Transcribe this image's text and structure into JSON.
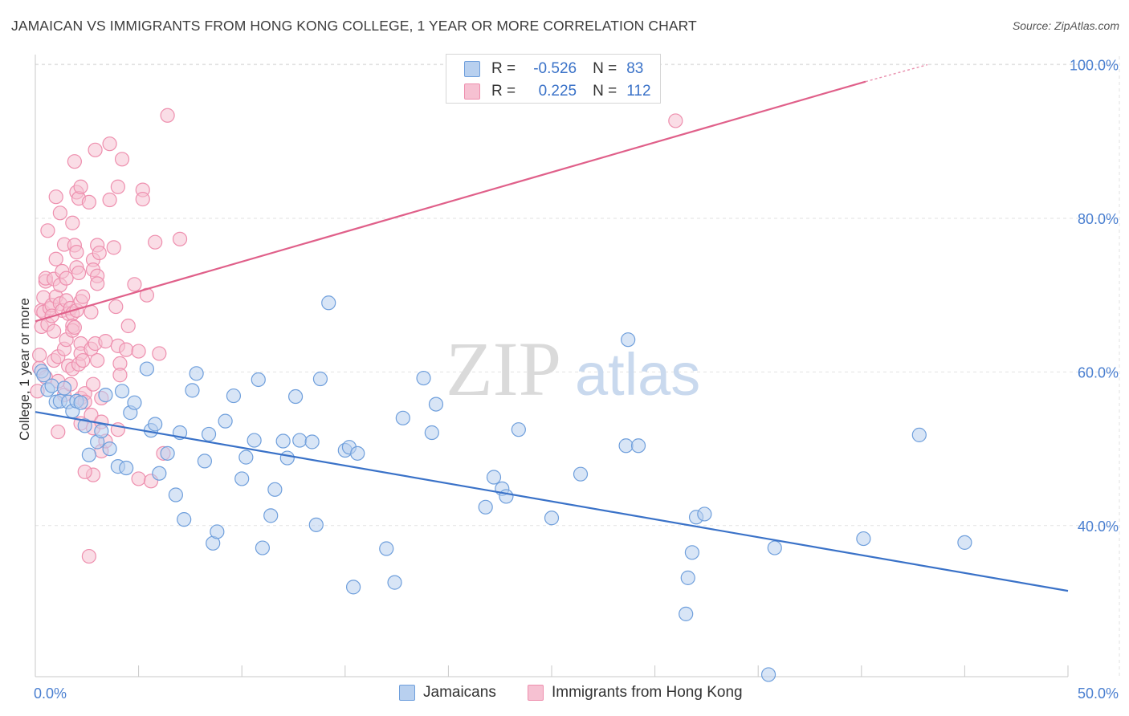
{
  "header": {
    "title": "JAMAICAN VS IMMIGRANTS FROM HONG KONG COLLEGE, 1 YEAR OR MORE CORRELATION CHART",
    "source": "Source: ZipAtlas.com"
  },
  "colors": {
    "blue": "#3a72c8",
    "blue_fill": "#b8d0ef",
    "blue_stroke": "#6f9fdc",
    "pink": "#e0608a",
    "pink_fill": "#f6c1d2",
    "pink_stroke": "#ee8fae",
    "grid": "#e2e2e2",
    "tick_text": "#4a7fd0"
  },
  "legend": {
    "rows": [
      {
        "r_label": "R =",
        "r_value": "-0.526",
        "n_label": "N =",
        "n_value": "83"
      },
      {
        "r_label": "R =",
        "r_value": "0.225",
        "n_label": "N =",
        "n_value": "112"
      }
    ]
  },
  "bottom_legend": {
    "items": [
      "Jamaicans",
      "Immigrants from Hong Kong"
    ]
  },
  "watermark": {
    "zip": "ZIP",
    "atlas": "atlas"
  },
  "chart_data": {
    "type": "scatter",
    "title": "JAMAICAN VS IMMIGRANTS FROM HONG KONG COLLEGE, 1 YEAR OR MORE CORRELATION CHART",
    "xlabel": "",
    "ylabel": "College, 1 year or more",
    "xlim": [
      0,
      50
    ],
    "ylim": [
      20.5,
      102
    ],
    "x_tick_labels": [
      {
        "value": 0,
        "label": "0.0%"
      },
      {
        "value": 50,
        "label": "50.0%"
      }
    ],
    "x_minor_ticks": [
      0,
      5,
      10,
      15,
      20,
      25,
      30,
      35,
      40,
      45,
      50
    ],
    "y_ticks": [
      {
        "value": 40,
        "label": "40.0%"
      },
      {
        "value": 60,
        "label": "60.0%"
      },
      {
        "value": 80,
        "label": "80.0%"
      },
      {
        "value": 100,
        "label": "100.0%"
      }
    ],
    "grid": true,
    "legend_position": "top-center",
    "series": [
      {
        "name": "Jamaicans",
        "R": -0.526,
        "N": 83,
        "trend": {
          "x": [
            0,
            50
          ],
          "y": [
            54.8,
            31.5
          ]
        },
        "points": [
          [
            0.3,
            60.1
          ],
          [
            0.4,
            59.6
          ],
          [
            0.6,
            57.7
          ],
          [
            0.8,
            58.2
          ],
          [
            1.0,
            56.1
          ],
          [
            1.2,
            56.2
          ],
          [
            1.4,
            57.9
          ],
          [
            1.6,
            56.1
          ],
          [
            1.8,
            54.9
          ],
          [
            2.0,
            56.2
          ],
          [
            2.2,
            56.0
          ],
          [
            2.4,
            53.0
          ],
          [
            2.6,
            49.2
          ],
          [
            3.0,
            50.9
          ],
          [
            3.2,
            52.3
          ],
          [
            3.4,
            57.0
          ],
          [
            3.6,
            50.0
          ],
          [
            4.0,
            47.7
          ],
          [
            4.2,
            57.5
          ],
          [
            4.4,
            47.5
          ],
          [
            4.6,
            54.7
          ],
          [
            4.8,
            56.0
          ],
          [
            5.4,
            60.4
          ],
          [
            5.6,
            52.4
          ],
          [
            5.8,
            53.2
          ],
          [
            6.0,
            46.8
          ],
          [
            6.4,
            49.4
          ],
          [
            6.8,
            44.0
          ],
          [
            7.0,
            52.1
          ],
          [
            7.2,
            40.8
          ],
          [
            7.6,
            57.6
          ],
          [
            7.8,
            59.8
          ],
          [
            8.2,
            48.4
          ],
          [
            8.4,
            51.9
          ],
          [
            8.6,
            37.7
          ],
          [
            8.8,
            39.2
          ],
          [
            9.2,
            53.6
          ],
          [
            9.6,
            56.9
          ],
          [
            10.0,
            46.1
          ],
          [
            10.2,
            48.9
          ],
          [
            10.6,
            51.1
          ],
          [
            10.8,
            59.0
          ],
          [
            11.0,
            37.1
          ],
          [
            11.4,
            41.3
          ],
          [
            11.6,
            44.7
          ],
          [
            12.2,
            48.8
          ],
          [
            12.0,
            51.0
          ],
          [
            12.6,
            56.8
          ],
          [
            12.8,
            51.1
          ],
          [
            13.4,
            50.9
          ],
          [
            13.6,
            40.1
          ],
          [
            13.8,
            59.1
          ],
          [
            14.2,
            69.0
          ],
          [
            15.0,
            49.8
          ],
          [
            15.2,
            50.2
          ],
          [
            15.4,
            32.0
          ],
          [
            15.6,
            49.4
          ],
          [
            17.0,
            37.0
          ],
          [
            17.4,
            32.6
          ],
          [
            17.8,
            54.0
          ],
          [
            18.8,
            59.2
          ],
          [
            19.2,
            52.1
          ],
          [
            19.4,
            55.8
          ],
          [
            21.8,
            42.4
          ],
          [
            22.2,
            46.3
          ],
          [
            22.6,
            44.8
          ],
          [
            22.8,
            43.8
          ],
          [
            23.4,
            52.5
          ],
          [
            25.0,
            41.0
          ],
          [
            26.4,
            46.7
          ],
          [
            28.6,
            50.4
          ],
          [
            28.7,
            64.2
          ],
          [
            29.2,
            50.4
          ],
          [
            31.5,
            28.5
          ],
          [
            31.6,
            33.2
          ],
          [
            31.8,
            36.5
          ],
          [
            32.0,
            41.1
          ],
          [
            32.4,
            41.5
          ],
          [
            35.5,
            20.6
          ],
          [
            35.8,
            37.1
          ],
          [
            40.1,
            38.3
          ],
          [
            42.8,
            51.8
          ],
          [
            45.0,
            37.8
          ]
        ]
      },
      {
        "name": "Immigrants from Hong Kong",
        "R": 0.225,
        "N": 112,
        "trend": {
          "x": [
            0,
            40.2
          ],
          "y": [
            66.6,
            97.8
          ]
        },
        "trend_dashed": {
          "x": [
            40.2,
            43.2
          ],
          "y": [
            97.8,
            100.0
          ]
        },
        "points": [
          [
            0.1,
            57.5
          ],
          [
            0.2,
            60.5
          ],
          [
            0.2,
            62.2
          ],
          [
            0.3,
            65.9
          ],
          [
            0.3,
            68.0
          ],
          [
            0.4,
            67.8
          ],
          [
            0.4,
            69.7
          ],
          [
            0.5,
            71.8
          ],
          [
            0.5,
            72.2
          ],
          [
            0.5,
            59.3
          ],
          [
            0.6,
            66.2
          ],
          [
            0.6,
            78.4
          ],
          [
            0.7,
            68.3
          ],
          [
            0.8,
            68.7
          ],
          [
            0.8,
            67.3
          ],
          [
            0.9,
            72.1
          ],
          [
            0.9,
            61.5
          ],
          [
            0.9,
            65.3
          ],
          [
            1.0,
            69.8
          ],
          [
            1.0,
            82.8
          ],
          [
            1.0,
            74.7
          ],
          [
            1.1,
            62.0
          ],
          [
            1.1,
            58.8
          ],
          [
            1.1,
            52.2
          ],
          [
            1.2,
            68.9
          ],
          [
            1.2,
            71.3
          ],
          [
            1.2,
            80.7
          ],
          [
            1.3,
            73.1
          ],
          [
            1.3,
            68.0
          ],
          [
            1.4,
            63.0
          ],
          [
            1.4,
            57.0
          ],
          [
            1.4,
            76.6
          ],
          [
            1.5,
            69.3
          ],
          [
            1.5,
            72.2
          ],
          [
            1.5,
            64.2
          ],
          [
            1.6,
            67.6
          ],
          [
            1.6,
            60.8
          ],
          [
            1.7,
            68.3
          ],
          [
            1.7,
            58.4
          ],
          [
            1.8,
            79.4
          ],
          [
            1.8,
            67.6
          ],
          [
            1.8,
            66.0
          ],
          [
            1.8,
            60.4
          ],
          [
            1.8,
            65.4
          ],
          [
            1.9,
            87.4
          ],
          [
            1.9,
            65.8
          ],
          [
            1.9,
            76.5
          ],
          [
            2.0,
            73.6
          ],
          [
            2.0,
            75.6
          ],
          [
            2.0,
            83.4
          ],
          [
            2.0,
            68.0
          ],
          [
            2.1,
            82.6
          ],
          [
            2.1,
            72.9
          ],
          [
            2.1,
            61.0
          ],
          [
            2.2,
            84.1
          ],
          [
            2.2,
            69.2
          ],
          [
            2.2,
            63.7
          ],
          [
            2.2,
            62.4
          ],
          [
            2.2,
            56.6
          ],
          [
            2.2,
            53.3
          ],
          [
            2.3,
            69.8
          ],
          [
            2.3,
            61.5
          ],
          [
            2.4,
            57.2
          ],
          [
            2.4,
            56.1
          ],
          [
            2.6,
            82.1
          ],
          [
            2.7,
            67.8
          ],
          [
            2.7,
            54.4
          ],
          [
            2.7,
            63.0
          ],
          [
            2.8,
            74.6
          ],
          [
            2.8,
            73.3
          ],
          [
            2.8,
            58.4
          ],
          [
            2.8,
            52.7
          ],
          [
            2.8,
            46.6
          ],
          [
            2.9,
            88.9
          ],
          [
            2.9,
            63.7
          ],
          [
            3.0,
            61.5
          ],
          [
            3.0,
            76.5
          ],
          [
            3.0,
            72.5
          ],
          [
            3.0,
            71.5
          ],
          [
            3.1,
            75.5
          ],
          [
            3.2,
            56.6
          ],
          [
            3.2,
            53.5
          ],
          [
            3.2,
            49.7
          ],
          [
            3.4,
            64.0
          ],
          [
            3.4,
            51.0
          ],
          [
            3.6,
            89.7
          ],
          [
            3.6,
            82.4
          ],
          [
            3.8,
            76.2
          ],
          [
            3.9,
            68.5
          ],
          [
            4.0,
            84.1
          ],
          [
            4.0,
            63.4
          ],
          [
            4.0,
            52.5
          ],
          [
            4.1,
            61.1
          ],
          [
            4.1,
            59.6
          ],
          [
            4.2,
            87.7
          ],
          [
            4.4,
            62.9
          ],
          [
            4.5,
            66.0
          ],
          [
            4.8,
            71.4
          ],
          [
            5.0,
            62.7
          ],
          [
            5.0,
            46.1
          ],
          [
            5.2,
            83.7
          ],
          [
            5.2,
            82.5
          ],
          [
            5.4,
            70.0
          ],
          [
            5.6,
            45.8
          ],
          [
            5.8,
            76.9
          ],
          [
            6.0,
            62.4
          ],
          [
            6.2,
            49.4
          ],
          [
            6.4,
            93.4
          ],
          [
            7.0,
            77.3
          ],
          [
            31.0,
            92.7
          ],
          [
            2.4,
            47.0
          ],
          [
            2.6,
            36.0
          ]
        ]
      }
    ]
  }
}
